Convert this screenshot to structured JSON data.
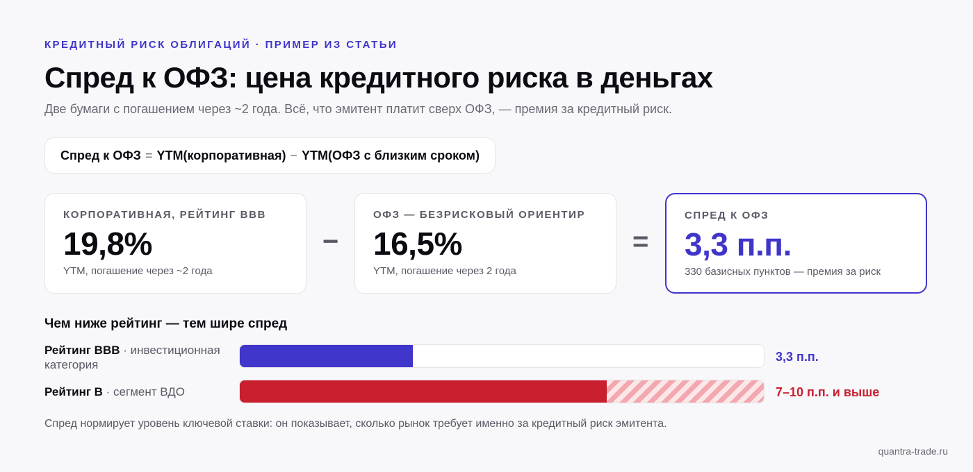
{
  "header": {
    "eyebrow": "КРЕДИТНЫЙ РИСК ОБЛИГАЦИЙ · ПРИМЕР ИЗ СТАТЬИ",
    "title": "Спред к ОФЗ: цена кредитного риска в деньгах",
    "subtitle": "Две бумаги с погашением через ~2 года. Всё, что эмитент платит сверх ОФЗ, — премия за кредитный риск."
  },
  "formula": {
    "lhs": "Спред к ОФЗ",
    "eq": "=",
    "term1": "YTM(корпоративная)",
    "minus": "−",
    "term2": "YTM(ОФЗ с близким сроком)"
  },
  "cards": [
    {
      "label": "КОРПОРАТИВНАЯ, РЕЙТИНГ BBB",
      "value": "19,8%",
      "note": "YTM, погашение через ~2 года"
    },
    {
      "label": "ОФЗ — БЕЗРИСКОВЫЙ ОРИЕНТИР",
      "value": "16,5%",
      "note": "YTM, погашение через 2 года"
    },
    {
      "label": "СПРЕД К ОФЗ",
      "value": "3,3 п.п.",
      "note": "330 базисных пунктов — премия за риск"
    }
  ],
  "operators": {
    "minus": "−",
    "equals": "="
  },
  "comparison": {
    "title": "Чем ниже рейтинг — тем шире спред",
    "rows": [
      {
        "name": "Рейтинг BBB",
        "category": " · инвестиционная категория",
        "value_label": "3,3 п.п.",
        "fill": 0.33,
        "hatch_to": 0.33,
        "color": "#4136cc"
      },
      {
        "name": "Рейтинг B",
        "category": " · сегмент ВДО",
        "value_label": "7–10 п.п. и выше",
        "fill": 0.7,
        "hatch_to": 1.0,
        "color": "#c91f2e"
      }
    ]
  },
  "footnote": "Спред нормирует уровень ключевой ставки: он показывает, сколько рынок требует именно за кредитный риск эмитента.",
  "source": "quantra-trade.ru",
  "colors": {
    "accent": "#3f35c9",
    "danger": "#c91f2e",
    "hatch": "#f2a8ae"
  }
}
